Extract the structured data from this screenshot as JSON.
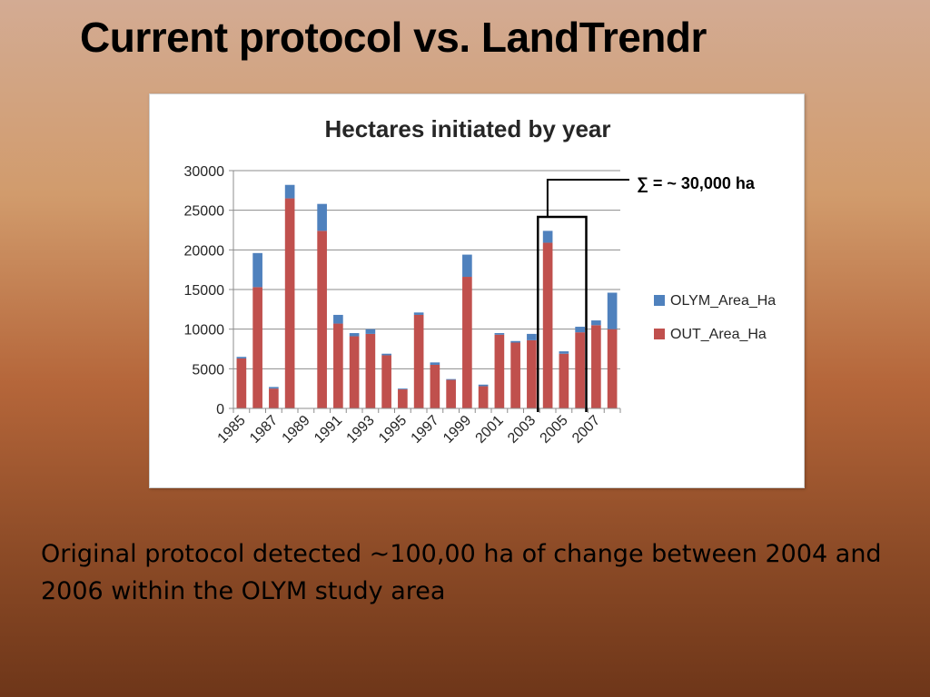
{
  "slide": {
    "title": "Current protocol vs. LandTrendr",
    "caption": "Original protocol detected ~100,00 ha of change between 2004 and 2006 within the OLYM study area"
  },
  "chart_data": {
    "type": "bar",
    "stacked": true,
    "title": "Hectares initiated by year",
    "xlabel": "",
    "ylabel": "",
    "ylim": [
      0,
      30000
    ],
    "yticks": [
      0,
      5000,
      10000,
      15000,
      20000,
      25000,
      30000
    ],
    "grid": true,
    "legend_position": "right",
    "categories": [
      "1985",
      "1986",
      "1987",
      "1988",
      "1989",
      "1990",
      "1991",
      "1992",
      "1993",
      "1994",
      "1995",
      "1996",
      "1997",
      "1998",
      "1999",
      "2000",
      "2001",
      "2002",
      "2003",
      "2004",
      "2005",
      "2006",
      "2007",
      "2008"
    ],
    "x_tick_labels": [
      "1985",
      "",
      "1987",
      "",
      "1989",
      "",
      "1991",
      "",
      "1993",
      "",
      "1995",
      "",
      "1997",
      "",
      "1999",
      "",
      "2001",
      "",
      "2003",
      "",
      "2005",
      "",
      "2007",
      ""
    ],
    "series": [
      {
        "name": "OUT_Area_Ha",
        "color": "#c0504d",
        "values": [
          6300,
          15300,
          2500,
          26500,
          0,
          22400,
          10700,
          9100,
          9400,
          6700,
          2400,
          11800,
          5500,
          3600,
          16600,
          2800,
          9300,
          8300,
          8600,
          20900,
          6900,
          9600,
          10500,
          10000
        ]
      },
      {
        "name": "OLYM_Area_Ha",
        "color": "#4f81bd",
        "values": [
          200,
          4300,
          200,
          1700,
          0,
          3400,
          1100,
          400,
          600,
          200,
          100,
          300,
          300,
          100,
          2800,
          200,
          200,
          200,
          800,
          1500,
          300,
          700,
          600,
          4600
        ]
      }
    ],
    "annotation": {
      "text": "∑ = ~ 30,000 ha",
      "bracket_categories": [
        "2004",
        "2006"
      ]
    }
  }
}
